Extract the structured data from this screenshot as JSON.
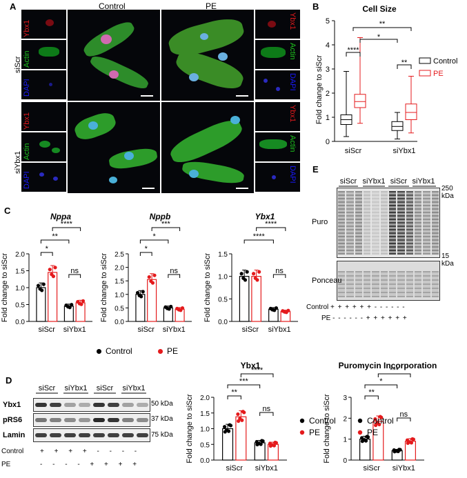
{
  "panels": {
    "A": "A",
    "B": "B",
    "C": "C",
    "D": "D",
    "E": "E"
  },
  "colors": {
    "control": "#000000",
    "pe": "#e41a1c",
    "ybx1": "#e41a1c",
    "actin": "#1ec41e",
    "dapi": "#1a1aff"
  },
  "panelA": {
    "col_control": "Control",
    "col_pe": "PE",
    "row_siscr": "siScr",
    "row_siybx1": "siYbx1",
    "ch_ybx1": "Ybx1",
    "ch_actin": "Actin",
    "ch_dapi": "DAPI"
  },
  "panelB": {
    "title": "Cell Size",
    "ylabel": "Fold change to siScr",
    "legend": [
      "Control",
      "PE"
    ],
    "sig": [
      "****",
      "**",
      "*",
      "**"
    ]
  },
  "panelC": {
    "ylabel": "Fold change to siScr",
    "legend": [
      "Control",
      "PE"
    ],
    "plots": [
      {
        "title": "Nppa",
        "sig": [
          "*",
          "**",
          "****",
          "ns"
        ]
      },
      {
        "title": "Nppb",
        "sig": [
          "*",
          "*",
          "***",
          "ns"
        ]
      },
      {
        "title": "Ybx1",
        "sig": [
          "****",
          "****",
          "ns"
        ]
      }
    ]
  },
  "panelD": {
    "blot_groups": [
      "siScr",
      "siYbx1",
      "siScr",
      "siYbx1"
    ],
    "rows": [
      "Ybx1",
      "pRS6",
      "Lamin"
    ],
    "kda": [
      "50 kDa",
      "37 kDa",
      "75 kDa"
    ],
    "control_row_label": "Control",
    "pe_row_label": "PE",
    "control_signs": "+ + + + - - - -",
    "pe_signs": "- - - - + + + +",
    "chart1_title": "Ybx1",
    "chart2_title": "Puromycin Incorporation",
    "ylabel": "Fold change to siScr",
    "legend": [
      "Control",
      "PE"
    ],
    "sig1": [
      "**",
      "***",
      "****",
      "ns"
    ],
    "sig2": [
      "**",
      "*",
      "***",
      "ns"
    ]
  },
  "panelE": {
    "groups": [
      "siScr",
      "siYbx1",
      "siScr",
      "siYbx1"
    ],
    "puro": "Puro",
    "ponceau": "Ponceau",
    "kda_top": "250",
    "kda_top_unit": "kDa",
    "kda_bot": "15",
    "kda_bot_unit": "kDa",
    "control_row_label": "Control",
    "pe_row_label": "PE",
    "control_signs": "+ + + + + + - - - - - -",
    "pe_signs": "- - - - - - + + + + + +"
  },
  "chart_data": [
    {
      "type": "box",
      "title": "Cell Size",
      "ylabel": "Fold change to siScr",
      "categories": [
        "siScr",
        "siYbx1"
      ],
      "ylim": [
        0,
        5
      ],
      "series": [
        {
          "name": "Control",
          "stats": [
            {
              "min": 0.2,
              "q1": 0.7,
              "median": 0.9,
              "q3": 1.1,
              "max": 2.9
            },
            {
              "min": 0.1,
              "q1": 0.45,
              "median": 0.62,
              "q3": 0.82,
              "max": 1.2
            }
          ]
        },
        {
          "name": "PE",
          "stats": [
            {
              "min": 0.75,
              "q1": 1.4,
              "median": 1.65,
              "q3": 1.95,
              "max": 4.3
            },
            {
              "min": 0.35,
              "q1": 0.9,
              "median": 1.2,
              "q3": 1.55,
              "max": 2.7
            }
          ]
        }
      ]
    },
    {
      "type": "bar",
      "title": "Nppa",
      "ylabel": "Fold change to siScr",
      "categories": [
        "siScr",
        "siYbx1"
      ],
      "ylim": [
        0,
        2
      ],
      "series": [
        {
          "name": "Control",
          "values": [
            1.0,
            0.45
          ]
        },
        {
          "name": "PE",
          "values": [
            1.45,
            0.55
          ]
        }
      ]
    },
    {
      "type": "bar",
      "title": "Nppb",
      "ylabel": "Fold change to siScr",
      "categories": [
        "siScr",
        "siYbx1"
      ],
      "ylim": [
        0,
        2.5
      ],
      "series": [
        {
          "name": "Control",
          "values": [
            1.0,
            0.5
          ]
        },
        {
          "name": "PE",
          "values": [
            1.55,
            0.45
          ]
        }
      ]
    },
    {
      "type": "bar",
      "title": "Ybx1",
      "ylabel": "Fold change to siScr",
      "categories": [
        "siScr",
        "siYbx1"
      ],
      "ylim": [
        0,
        1.5
      ],
      "series": [
        {
          "name": "Control",
          "values": [
            1.0,
            0.27
          ]
        },
        {
          "name": "PE",
          "values": [
            1.0,
            0.22
          ]
        }
      ]
    },
    {
      "type": "bar",
      "title": "Ybx1",
      "ylabel": "Fold change to siScr",
      "categories": [
        "siScr",
        "siYbx1"
      ],
      "ylim": [
        0,
        2.0
      ],
      "series": [
        {
          "name": "Control",
          "values": [
            1.0,
            0.55
          ]
        },
        {
          "name": "PE",
          "values": [
            1.38,
            0.5
          ]
        }
      ]
    },
    {
      "type": "bar",
      "title": "Puromycin Incorporation",
      "ylabel": "Fold change to siScr",
      "categories": [
        "siScr",
        "siYbx1"
      ],
      "ylim": [
        0,
        3
      ],
      "series": [
        {
          "name": "Control",
          "values": [
            1.0,
            0.45
          ]
        },
        {
          "name": "PE",
          "values": [
            1.85,
            0.9
          ]
        }
      ]
    }
  ]
}
